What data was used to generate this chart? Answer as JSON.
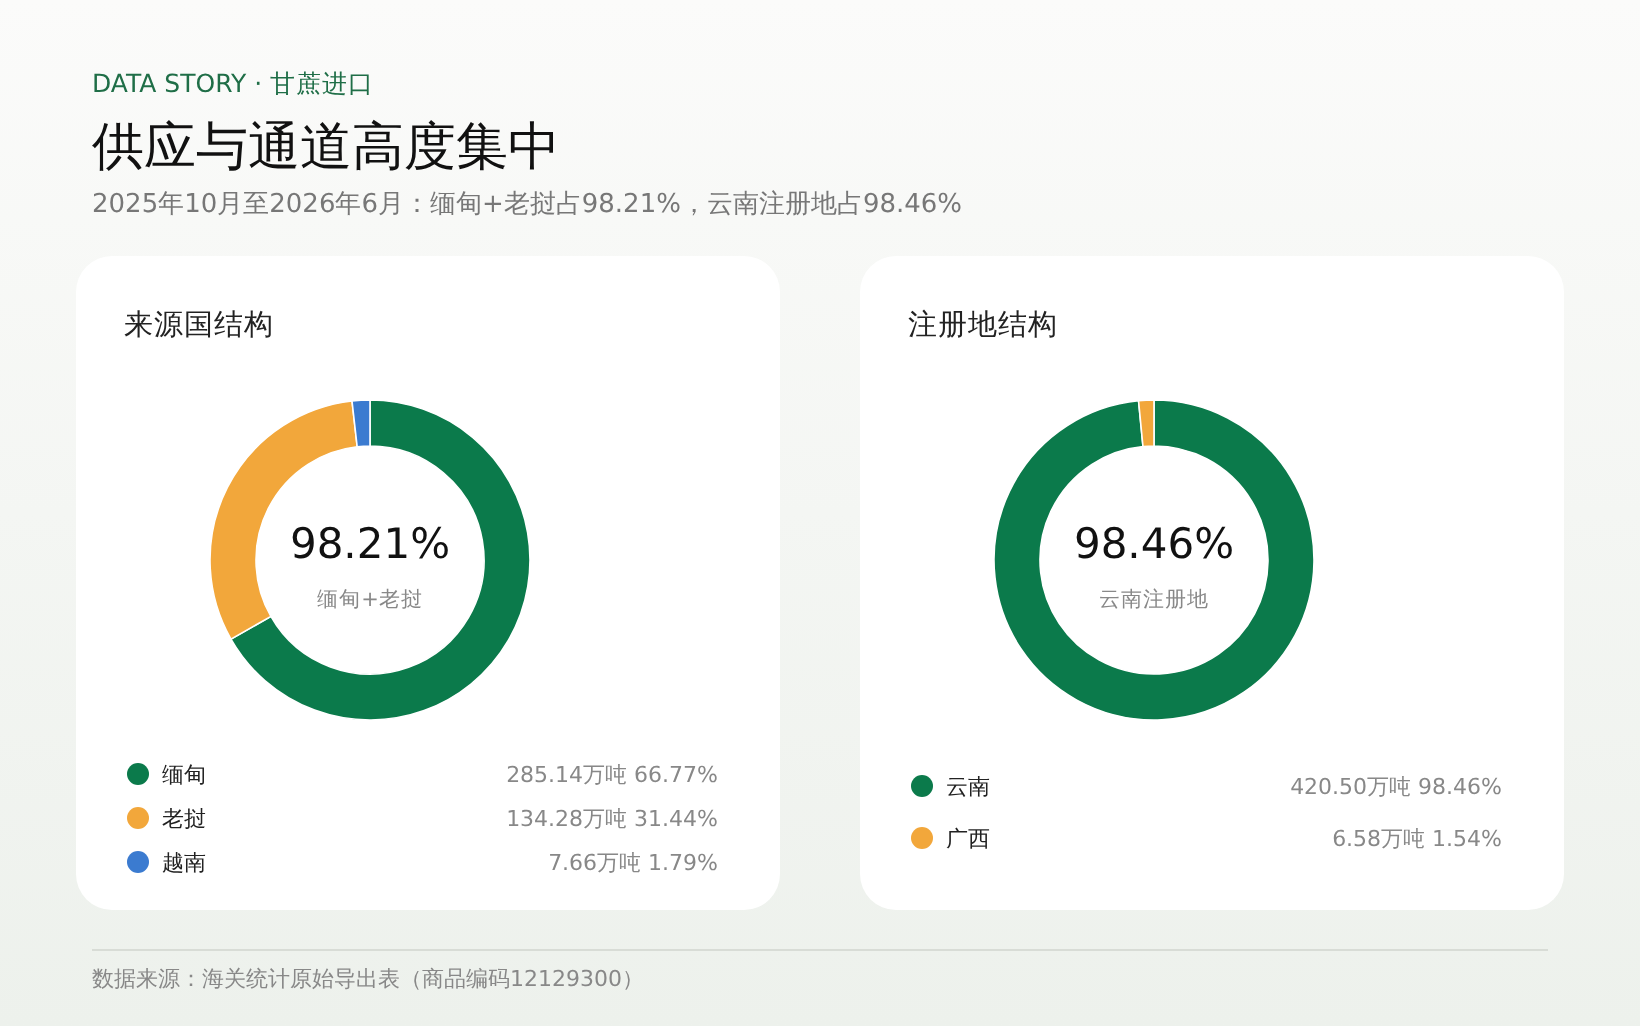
{
  "chart_data": [
    {
      "type": "other",
      "title": "供应与通道高度集中",
      "subtitle": "2025年10月至2026年6月：缅甸+老挝占98.21%，云南注册地占98.46%",
      "annotations": [
        "DATA STORY ·  甘蔗进口",
        "数据来源：海关统计原始导出表（商品编码12129300）"
      ]
    },
    {
      "type": "donut",
      "title": "来源国结构",
      "categories": [
        "缅甸",
        "老挝",
        "越南"
      ],
      "values": [
        285.14,
        134.28,
        7.66
      ],
      "colors": [
        "#0b7a4b",
        "#f2a73b",
        "#3b7bd0"
      ],
      "legend": "bottom",
      "value_labels": [
        "285.14万吨  66.77%",
        "134.28万吨  31.44%",
        "7.66万吨  1.79%"
      ],
      "annotations": [
        "98.21%",
        "缅甸+老挝"
      ]
    },
    {
      "type": "donut",
      "title": "注册地结构",
      "categories": [
        "云南",
        "广西"
      ],
      "values": [
        420.5,
        6.58
      ],
      "colors": [
        "#0b7a4b",
        "#f2a73b"
      ],
      "legend": "bottom",
      "value_labels": [
        "420.50万吨  98.46%",
        "6.58万吨  1.54%"
      ],
      "annotations": [
        "98.46%",
        "云南注册地"
      ]
    }
  ]
}
